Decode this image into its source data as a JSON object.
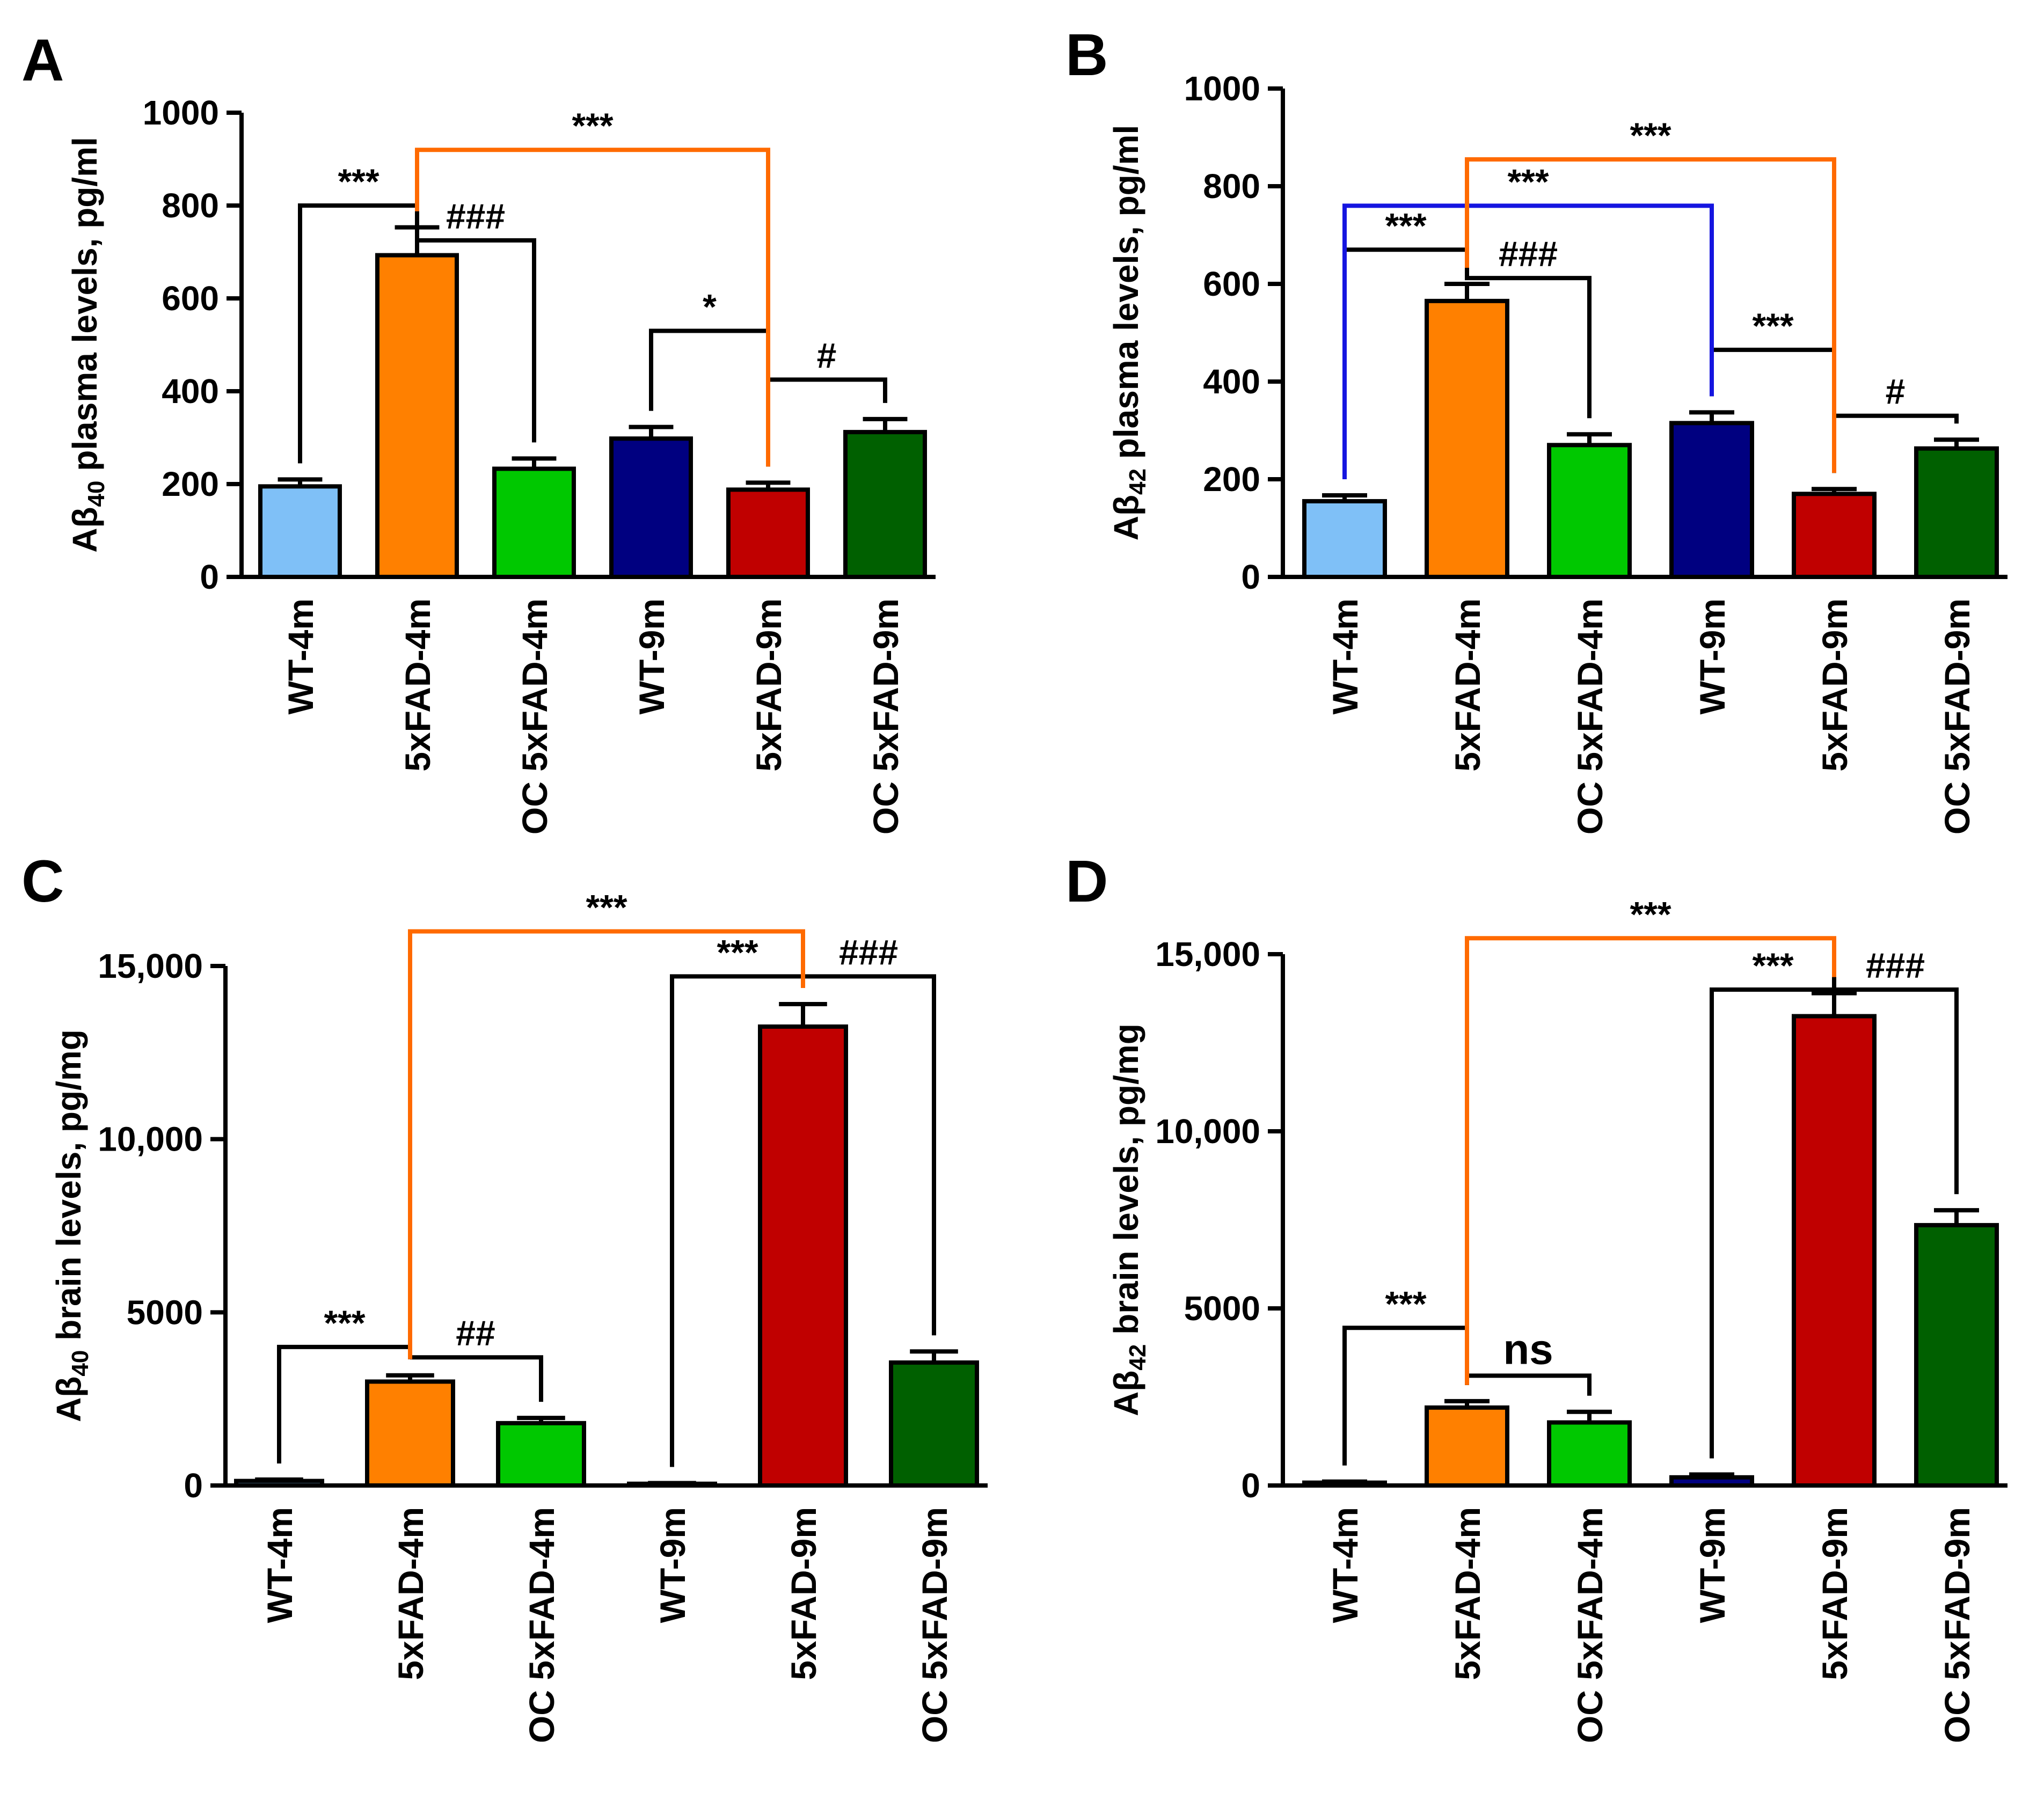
{
  "panels": [
    {
      "letter": "A",
      "chart_data": {
        "type": "bar",
        "categories": [
          "WT-4m",
          "5xFAD-4m",
          "OC 5xFAD-4m",
          "WT-9m",
          "5xFAD-9m",
          "OC 5xFAD-9m"
        ],
        "values": [
          195,
          693,
          233,
          298,
          188,
          312
        ],
        "errors": [
          15,
          60,
          22,
          25,
          15,
          28
        ],
        "colors": [
          "#7fc0f7",
          "#ff8000",
          "#00c800",
          "#000080",
          "#c00000",
          "#006000"
        ],
        "ylabel_prefix": "Aβ",
        "ylabel_sub": "40",
        "ylabel_suffix": " plasma levels, pg/ml",
        "ylim": [
          0,
          1000
        ],
        "ticks": [
          0,
          200,
          400,
          600,
          800,
          1000
        ],
        "tick_labels": [
          "0",
          "200",
          "400",
          "600",
          "800",
          "1000"
        ],
        "annotations": [
          {
            "from": 0,
            "to": 1,
            "y": 800,
            "label": "***",
            "color": "#000000"
          },
          {
            "from": 1,
            "to": 2,
            "y": 725,
            "label": "###",
            "color": "#000000"
          },
          {
            "from": 3,
            "to": 4,
            "y": 530,
            "label": "*",
            "color": "#000000"
          },
          {
            "from": 4,
            "to": 5,
            "y": 425,
            "label": "#",
            "color": "#000000"
          },
          {
            "from": 1,
            "to": 4,
            "y": 920,
            "label": "***",
            "color": "#ff6a00"
          }
        ]
      }
    },
    {
      "letter": "B",
      "chart_data": {
        "type": "bar",
        "categories": [
          "WT-4m",
          "5xFAD-4m",
          "OC 5xFAD-4m",
          "WT-9m",
          "5xFAD-9m",
          "OC 5xFAD-9m"
        ],
        "values": [
          155,
          565,
          270,
          315,
          170,
          263
        ],
        "errors": [
          12,
          35,
          22,
          22,
          10,
          18
        ],
        "colors": [
          "#7fc0f7",
          "#ff8000",
          "#00c800",
          "#000080",
          "#c00000",
          "#006000"
        ],
        "ylabel_prefix": "Aβ",
        "ylabel_sub": "42",
        "ylabel_suffix": " plasma levels, pg/ml",
        "ylim": [
          0,
          1000
        ],
        "ticks": [
          0,
          200,
          400,
          600,
          800,
          1000
        ],
        "tick_labels": [
          "0",
          "200",
          "400",
          "600",
          "800",
          "1000"
        ],
        "annotations": [
          {
            "from": 0,
            "to": 1,
            "y": 670,
            "label": "***",
            "color": "#000000"
          },
          {
            "from": 1,
            "to": 2,
            "y": 612,
            "label": "###",
            "color": "#000000"
          },
          {
            "from": 3,
            "to": 4,
            "y": 465,
            "label": "***",
            "color": "#000000"
          },
          {
            "from": 4,
            "to": 5,
            "y": 330,
            "label": "#",
            "color": "#000000"
          },
          {
            "from": 0,
            "to": 3,
            "y": 760,
            "label": "***",
            "color": "#1515e0"
          },
          {
            "from": 1,
            "to": 4,
            "y": 855,
            "label": "***",
            "color": "#ff6a00"
          }
        ]
      }
    },
    {
      "letter": "C",
      "chart_data": {
        "type": "bar",
        "categories": [
          "WT-4m",
          "5xFAD-4m",
          "OC 5xFAD-4m",
          "WT-9m",
          "5xFAD-9m",
          "OC 5xFAD-9m"
        ],
        "values": [
          130,
          3000,
          1800,
          50,
          13250,
          3550
        ],
        "errors": [
          40,
          180,
          150,
          20,
          650,
          320
        ],
        "colors": [
          "#7fc0f7",
          "#ff8000",
          "#00c800",
          "#000080",
          "#c00000",
          "#006000"
        ],
        "ylabel_prefix": "Aβ",
        "ylabel_sub": "40",
        "ylabel_suffix": " brain levels, pg/mg",
        "ylim": [
          0,
          15000
        ],
        "ticks": [
          0,
          5000,
          10000,
          15000
        ],
        "tick_labels": [
          "0",
          "5000",
          "10,000",
          "15,000"
        ],
        "annotations": [
          {
            "from": 0,
            "to": 1,
            "y": 4000,
            "label": "***",
            "color": "#000000"
          },
          {
            "from": 1,
            "to": 2,
            "y": 3700,
            "label": "##",
            "color": "#000000"
          },
          {
            "from": 3,
            "to": 4,
            "y": 14700,
            "label": "***",
            "color": "#000000"
          },
          {
            "from": 4,
            "to": 5,
            "y": 14700,
            "label": "###",
            "color": "#000000"
          },
          {
            "from": 1,
            "to": 4,
            "y": 16000,
            "label": "***",
            "color": "#ff6a00"
          }
        ]
      }
    },
    {
      "letter": "D",
      "chart_data": {
        "type": "bar",
        "categories": [
          "WT-4m",
          "5xFAD-4m",
          "OC 5xFAD-4m",
          "WT-9m",
          "5xFAD-9m",
          "OC 5xFAD-9m"
        ],
        "values": [
          80,
          2200,
          1780,
          230,
          13250,
          7350
        ],
        "errors": [
          30,
          180,
          300,
          80,
          650,
          420
        ],
        "colors": [
          "#7fc0f7",
          "#ff8000",
          "#00c800",
          "#000080",
          "#c00000",
          "#006000"
        ],
        "ylabel_prefix": "Aβ",
        "ylabel_sub": "42",
        "ylabel_suffix": " brain levels, pg/mg",
        "ylim": [
          0,
          15000
        ],
        "ticks": [
          0,
          5000,
          10000,
          15000
        ],
        "tick_labels": [
          "0",
          "5000",
          "10,000",
          "15,000"
        ],
        "annotations": [
          {
            "from": 0,
            "to": 1,
            "y": 4450,
            "label": "***",
            "color": "#000000"
          },
          {
            "from": 1,
            "to": 2,
            "y": 3100,
            "label": "ns",
            "color": "#000000"
          },
          {
            "from": 3,
            "to": 4,
            "y": 14000,
            "label": "***",
            "color": "#000000"
          },
          {
            "from": 4,
            "to": 5,
            "y": 14000,
            "label": "###",
            "color": "#000000"
          },
          {
            "from": 1,
            "to": 4,
            "y": 15450,
            "label": "***",
            "color": "#ff6a00"
          }
        ]
      }
    }
  ]
}
